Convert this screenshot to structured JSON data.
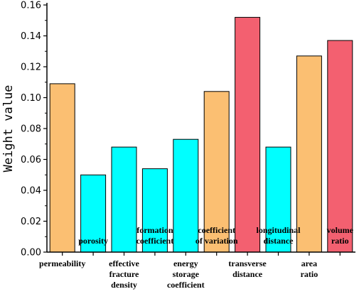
{
  "chart_data": {
    "type": "bar",
    "title": "",
    "xlabel": "",
    "ylabel": "Weight value",
    "ylim": [
      0,
      0.16
    ],
    "yticks": [
      "0.00",
      "0.02",
      "0.04",
      "0.06",
      "0.08",
      "0.10",
      "0.12",
      "0.14",
      "0.16"
    ],
    "grid": false,
    "categories": [
      "permeability",
      "porosity",
      "effective fracture density",
      "formation coefficient",
      "energy storage coefficient",
      "coefficient of variation",
      "transverse distance",
      "longitudinal distance",
      "area ratio",
      "volume ratio"
    ],
    "values": [
      0.109,
      0.05,
      0.068,
      0.054,
      0.073,
      0.104,
      0.152,
      0.068,
      0.127,
      0.137
    ],
    "bar_colors": [
      "#FBBF72",
      "#00FFFF",
      "#00FFFF",
      "#00FFFF",
      "#00FFFF",
      "#FBBF72",
      "#F36070",
      "#00FFFF",
      "#FBBF72",
      "#F36070"
    ],
    "label_lines": [
      [
        "permeability"
      ],
      [
        "porosity"
      ],
      [
        "effective",
        "fracture",
        "density"
      ],
      [
        "formation",
        "coefficient"
      ],
      [
        "energy",
        "storage",
        "coefficient"
      ],
      [
        "coefficient",
        "of variation"
      ],
      [
        "transverse",
        "distance"
      ],
      [
        "longitudinal",
        "distance"
      ],
      [
        "area",
        "ratio"
      ],
      [
        "volume",
        "ratio"
      ]
    ],
    "label_placement": [
      "below",
      "inside",
      "below",
      "inside",
      "below",
      "inside",
      "below",
      "inside",
      "below",
      "inside"
    ]
  }
}
